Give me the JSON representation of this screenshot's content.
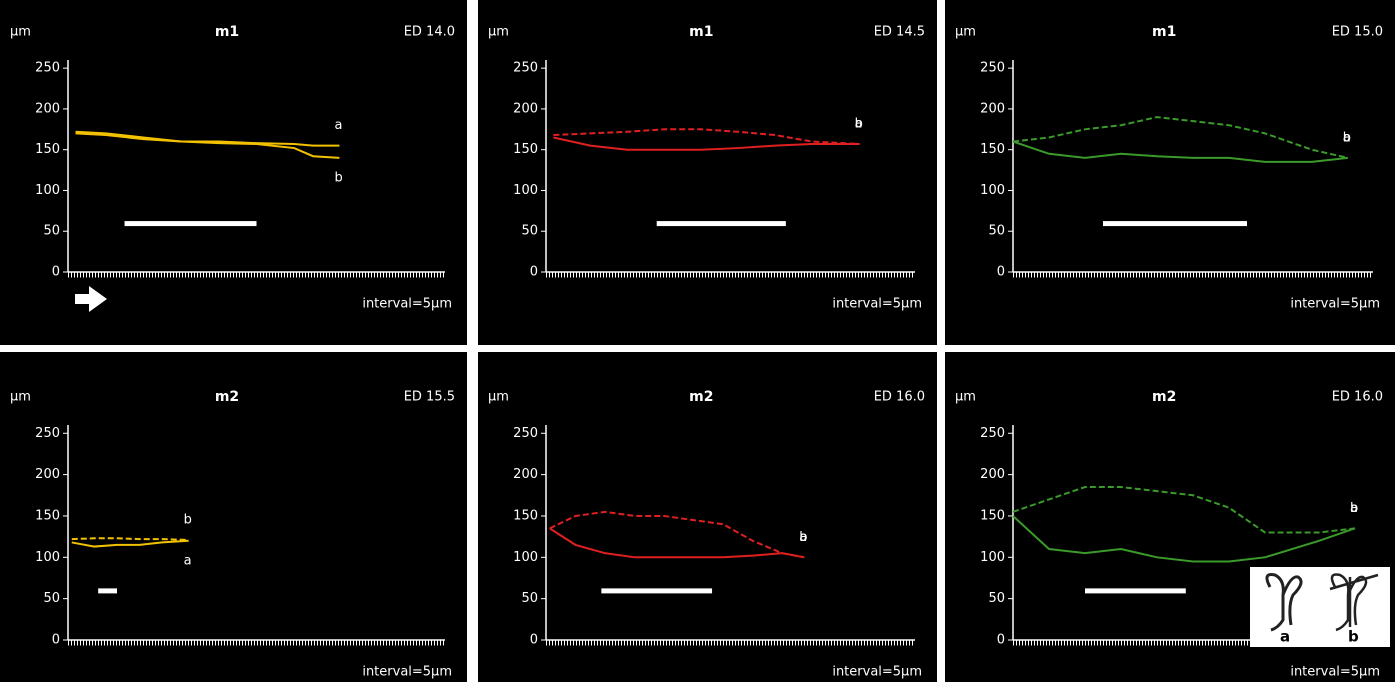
{
  "chart_data": [
    {
      "type": "line",
      "title": "m1",
      "y_label": "µm",
      "annotation": "ED 14.0",
      "x_label": "interval=5µm",
      "xlim": [
        0,
        100
      ],
      "ylim": [
        0,
        260
      ],
      "yticks": [
        0,
        50,
        100,
        150,
        200,
        250
      ],
      "series": [
        {
          "name": "a",
          "color": "#f2c200",
          "dashed": false,
          "x": [
            2,
            10,
            20,
            30,
            40,
            50,
            60,
            65,
            72
          ],
          "values": [
            172,
            170,
            165,
            160,
            160,
            158,
            157,
            155,
            155
          ]
        },
        {
          "name": "b",
          "color": "#f2c200",
          "dashed": false,
          "x": [
            2,
            10,
            20,
            30,
            40,
            50,
            60,
            65,
            72
          ],
          "values": [
            170,
            168,
            163,
            160,
            158,
            157,
            152,
            142,
            140
          ]
        }
      ]
    },
    {
      "type": "line",
      "title": "m1",
      "y_label": "µm",
      "annotation": "ED 14.5",
      "x_label": "interval=5µm",
      "xlim": [
        0,
        100
      ],
      "ylim": [
        0,
        260
      ],
      "yticks": [
        0,
        50,
        100,
        150,
        200,
        250
      ],
      "series": [
        {
          "name": "a",
          "color": "#e02020",
          "dashed": false,
          "x": [
            2,
            12,
            22,
            32,
            42,
            52,
            62,
            72,
            85
          ],
          "values": [
            165,
            155,
            150,
            150,
            150,
            152,
            155,
            157,
            157
          ]
        },
        {
          "name": "b",
          "color": "#e02020",
          "dashed": true,
          "x": [
            2,
            12,
            22,
            32,
            42,
            52,
            62,
            72,
            85
          ],
          "values": [
            168,
            170,
            172,
            175,
            175,
            172,
            168,
            160,
            157
          ]
        }
      ]
    },
    {
      "type": "line",
      "title": "m1",
      "y_label": "µm",
      "annotation": "ED 15.0",
      "x_label": "interval=5µm",
      "xlim": [
        0,
        100
      ],
      "ylim": [
        0,
        260
      ],
      "yticks": [
        0,
        50,
        100,
        150,
        200,
        250
      ],
      "series": [
        {
          "name": "a",
          "color": "#3a9a2a",
          "dashed": false,
          "x": [
            0,
            10,
            20,
            30,
            40,
            50,
            60,
            70,
            83,
            93
          ],
          "values": [
            160,
            145,
            140,
            145,
            142,
            140,
            140,
            135,
            135,
            140
          ]
        },
        {
          "name": "b",
          "color": "#3a9a2a",
          "dashed": true,
          "x": [
            0,
            10,
            20,
            30,
            40,
            50,
            60,
            70,
            83,
            93
          ],
          "values": [
            160,
            165,
            175,
            180,
            190,
            185,
            180,
            170,
            150,
            140
          ]
        }
      ]
    },
    {
      "type": "line",
      "title": "m2",
      "y_label": "µm",
      "annotation": "ED 15.5",
      "x_label": "interval=5µm",
      "xlim": [
        0,
        100
      ],
      "ylim": [
        0,
        260
      ],
      "yticks": [
        0,
        50,
        100,
        150,
        200,
        250
      ],
      "series": [
        {
          "name": "a",
          "color": "#f2c200",
          "dashed": false,
          "x": [
            1,
            7,
            13,
            19,
            25,
            32
          ],
          "values": [
            118,
            113,
            115,
            115,
            118,
            120
          ]
        },
        {
          "name": "b",
          "color": "#f2c200",
          "dashed": true,
          "x": [
            1,
            7,
            13,
            19,
            25,
            32
          ],
          "values": [
            122,
            123,
            123,
            122,
            122,
            121
          ]
        }
      ]
    },
    {
      "type": "line",
      "title": "m2",
      "y_label": "µm",
      "annotation": "ED 16.0",
      "x_label": "interval=5µm",
      "xlim": [
        0,
        100
      ],
      "ylim": [
        0,
        260
      ],
      "yticks": [
        0,
        50,
        100,
        150,
        200,
        250
      ],
      "series": [
        {
          "name": "a",
          "color": "#e02020",
          "dashed": false,
          "x": [
            1,
            8,
            16,
            24,
            32,
            40,
            48,
            56,
            64,
            70
          ],
          "values": [
            135,
            115,
            105,
            100,
            100,
            100,
            100,
            102,
            105,
            100
          ]
        },
        {
          "name": "b",
          "color": "#e02020",
          "dashed": true,
          "x": [
            1,
            8,
            16,
            24,
            32,
            40,
            48,
            56,
            64,
            70
          ],
          "values": [
            135,
            150,
            155,
            150,
            150,
            145,
            140,
            120,
            105,
            100
          ]
        }
      ]
    },
    {
      "type": "line",
      "title": "m2",
      "y_label": "µm",
      "annotation": "ED 16.0",
      "x_label": "interval=5µm",
      "xlim": [
        0,
        100
      ],
      "ylim": [
        0,
        260
      ],
      "yticks": [
        0,
        50,
        100,
        150,
        200,
        250
      ],
      "inset_labels": [
        "a",
        "b"
      ],
      "series": [
        {
          "name": "a",
          "color": "#3a9a2a",
          "dashed": false,
          "x": [
            0,
            10,
            20,
            30,
            40,
            50,
            60,
            70,
            85,
            95
          ],
          "values": [
            150,
            110,
            105,
            110,
            100,
            95,
            95,
            100,
            120,
            135
          ]
        },
        {
          "name": "b",
          "color": "#3a9a2a",
          "dashed": true,
          "x": [
            0,
            10,
            20,
            30,
            40,
            50,
            60,
            70,
            85,
            95
          ],
          "values": [
            155,
            170,
            185,
            185,
            180,
            175,
            160,
            130,
            130,
            135
          ]
        }
      ]
    }
  ]
}
